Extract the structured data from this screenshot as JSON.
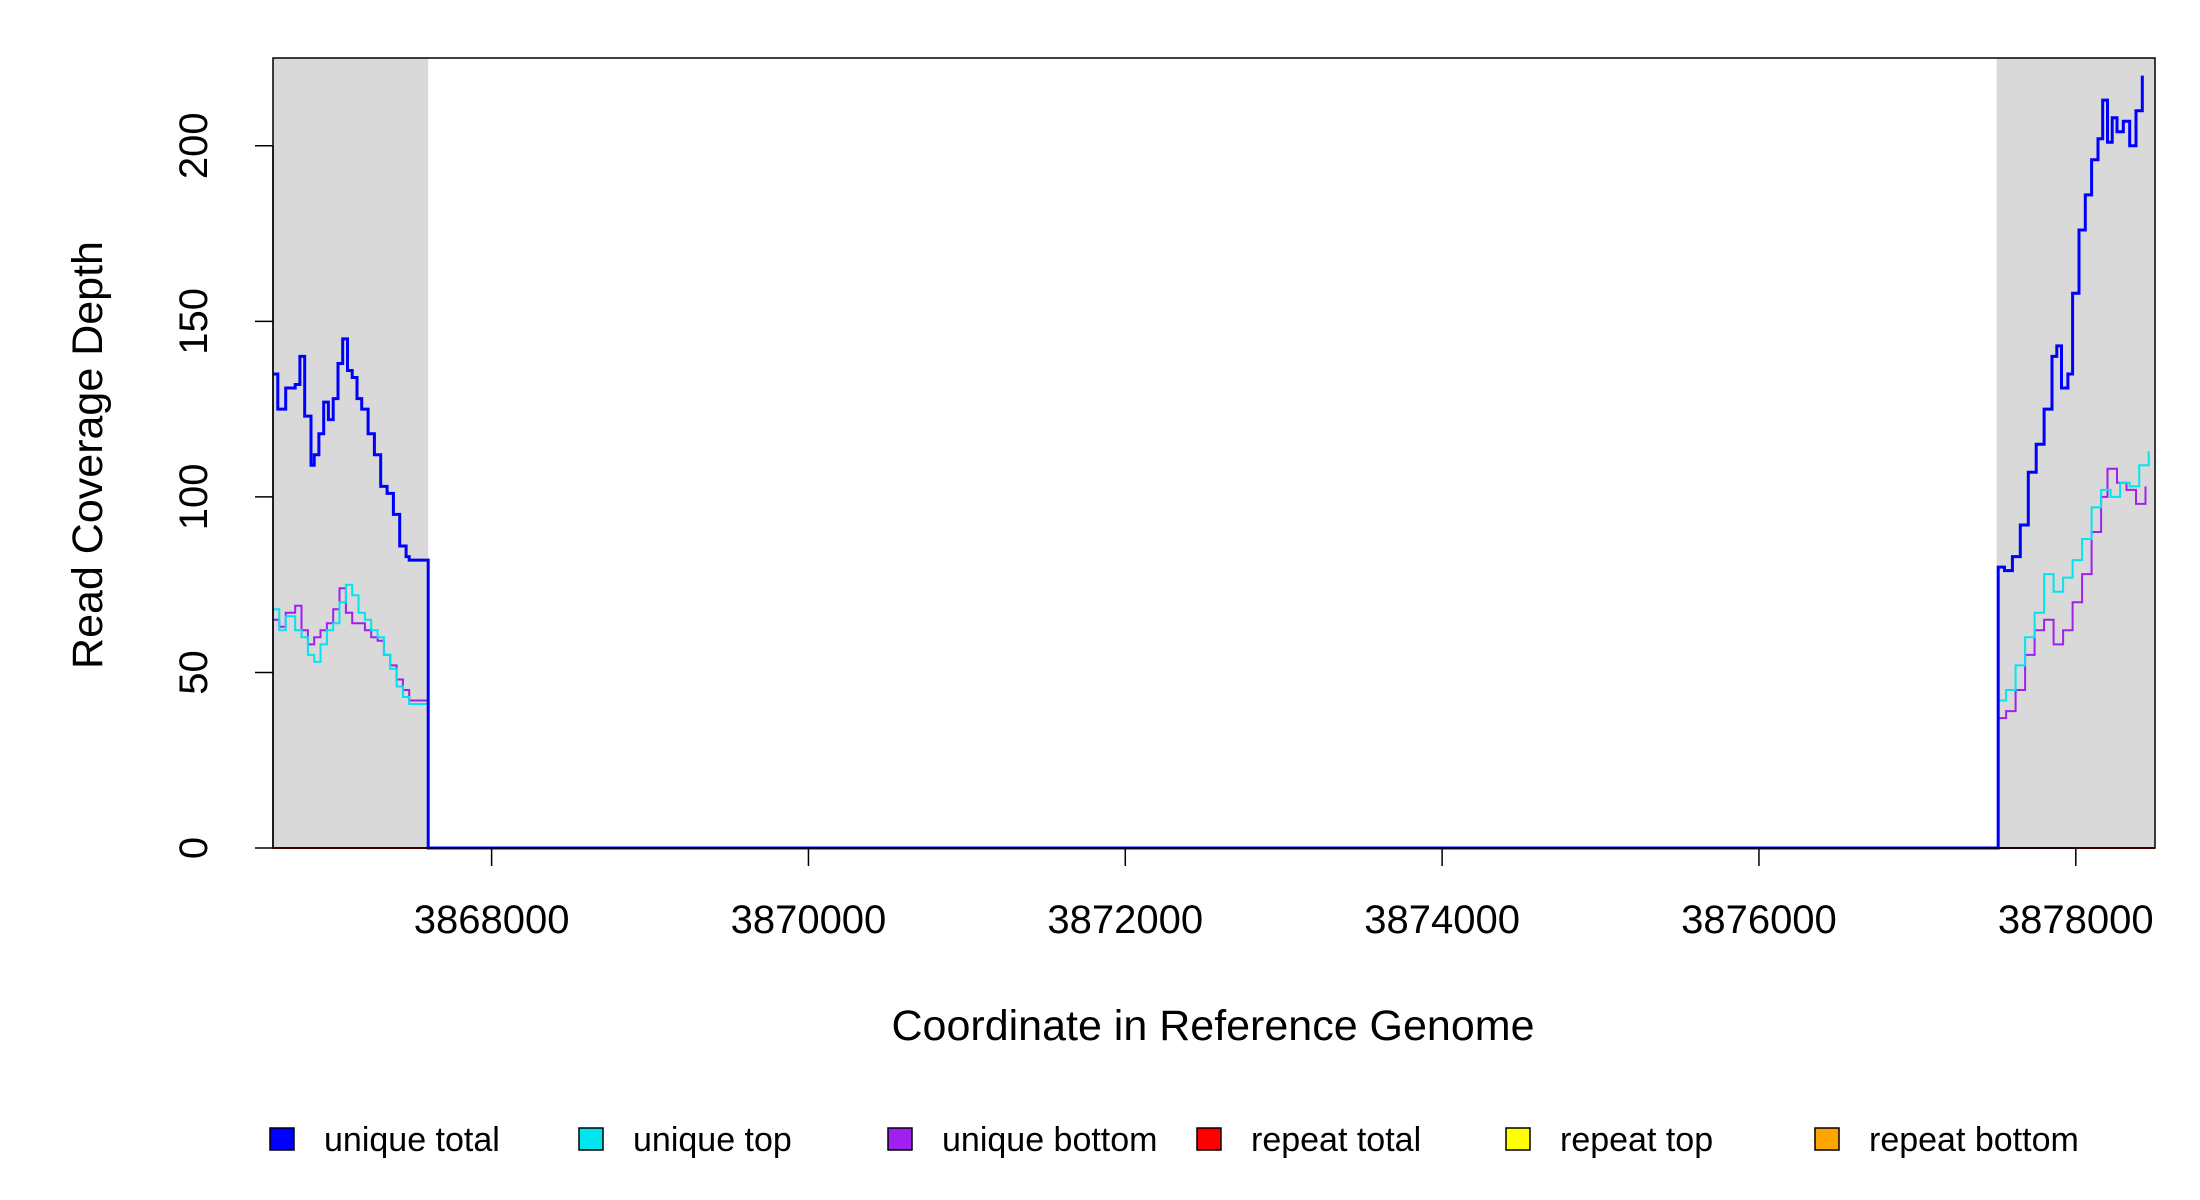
{
  "chart_data": {
    "type": "line",
    "title": "",
    "xlabel": "Coordinate in Reference Genome",
    "ylabel": "Read Coverage Depth",
    "xlim": [
      3866620,
      3878500
    ],
    "ylim": [
      0,
      225
    ],
    "x_ticks": [
      3868000,
      3870000,
      3872000,
      3874000,
      3876000,
      3878000
    ],
    "x_tick_labels": [
      "3868000",
      "3870000",
      "3872000",
      "3874000",
      "3876000",
      "3878000"
    ],
    "y_ticks": [
      0,
      50,
      100,
      150,
      200
    ],
    "y_tick_labels": [
      "0",
      "50",
      "100",
      "150",
      "200"
    ],
    "shaded_regions": [
      {
        "x_start": 3866620,
        "x_end": 3867600,
        "color": "#d9d9d9"
      },
      {
        "x_start": 3877500,
        "x_end": 3878500,
        "color": "#d9d9d9"
      }
    ],
    "grid": false,
    "legend_position": "bottom",
    "legend": [
      {
        "label": "unique total",
        "color": "#0000ff"
      },
      {
        "label": "unique top",
        "color": "#00e5ee"
      },
      {
        "label": "unique bottom",
        "color": "#a020f0"
      },
      {
        "label": "repeat total",
        "color": "#ff0000"
      },
      {
        "label": "repeat top",
        "color": "#ffff00"
      },
      {
        "label": "repeat bottom",
        "color": "#ffa500"
      }
    ],
    "series": [
      {
        "name": "unique total",
        "color": "#0000ff",
        "step": true,
        "points": [
          [
            3866620,
            135
          ],
          [
            3866650,
            125
          ],
          [
            3866700,
            131
          ],
          [
            3866760,
            132
          ],
          [
            3866790,
            140
          ],
          [
            3866820,
            123
          ],
          [
            3866860,
            109
          ],
          [
            3866880,
            112
          ],
          [
            3866910,
            118
          ],
          [
            3866940,
            127
          ],
          [
            3866970,
            122
          ],
          [
            3867000,
            128
          ],
          [
            3867030,
            138
          ],
          [
            3867060,
            145
          ],
          [
            3867090,
            136
          ],
          [
            3867120,
            134
          ],
          [
            3867150,
            128
          ],
          [
            3867180,
            125
          ],
          [
            3867220,
            118
          ],
          [
            3867260,
            112
          ],
          [
            3867300,
            103
          ],
          [
            3867340,
            101
          ],
          [
            3867380,
            95
          ],
          [
            3867420,
            86
          ],
          [
            3867460,
            83
          ],
          [
            3867480,
            82
          ],
          [
            3867600,
            0
          ],
          [
            3877500,
            0
          ],
          [
            3877510,
            80
          ],
          [
            3877550,
            79
          ],
          [
            3877600,
            83
          ],
          [
            3877650,
            92
          ],
          [
            3877700,
            107
          ],
          [
            3877750,
            115
          ],
          [
            3877800,
            125
          ],
          [
            3877850,
            140
          ],
          [
            3877880,
            143
          ],
          [
            3877910,
            131
          ],
          [
            3877950,
            135
          ],
          [
            3877980,
            158
          ],
          [
            3878020,
            176
          ],
          [
            3878060,
            186
          ],
          [
            3878100,
            196
          ],
          [
            3878140,
            202
          ],
          [
            3878170,
            213
          ],
          [
            3878200,
            201
          ],
          [
            3878230,
            208
          ],
          [
            3878260,
            204
          ],
          [
            3878300,
            207
          ],
          [
            3878340,
            200
          ],
          [
            3878380,
            210
          ],
          [
            3878420,
            220
          ]
        ]
      },
      {
        "name": "unique top",
        "color": "#00e5ee",
        "step": true,
        "points": [
          [
            3866620,
            68
          ],
          [
            3866660,
            62
          ],
          [
            3866700,
            66
          ],
          [
            3866760,
            62
          ],
          [
            3866800,
            60
          ],
          [
            3866840,
            55
          ],
          [
            3866880,
            53
          ],
          [
            3866920,
            58
          ],
          [
            3866960,
            62
          ],
          [
            3867000,
            64
          ],
          [
            3867040,
            70
          ],
          [
            3867080,
            75
          ],
          [
            3867120,
            72
          ],
          [
            3867160,
            67
          ],
          [
            3867200,
            65
          ],
          [
            3867240,
            62
          ],
          [
            3867280,
            60
          ],
          [
            3867320,
            55
          ],
          [
            3867360,
            51
          ],
          [
            3867400,
            46
          ],
          [
            3867440,
            43
          ],
          [
            3867480,
            41
          ],
          [
            3867600,
            0
          ],
          [
            3877500,
            0
          ],
          [
            3877510,
            42
          ],
          [
            3877560,
            45
          ],
          [
            3877620,
            52
          ],
          [
            3877680,
            60
          ],
          [
            3877740,
            67
          ],
          [
            3877800,
            78
          ],
          [
            3877860,
            73
          ],
          [
            3877920,
            77
          ],
          [
            3877980,
            82
          ],
          [
            3878040,
            88
          ],
          [
            3878100,
            97
          ],
          [
            3878160,
            102
          ],
          [
            3878220,
            100
          ],
          [
            3878280,
            104
          ],
          [
            3878340,
            103
          ],
          [
            3878400,
            109
          ],
          [
            3878460,
            113
          ]
        ]
      },
      {
        "name": "unique bottom",
        "color": "#a020f0",
        "step": true,
        "points": [
          [
            3866620,
            65
          ],
          [
            3866660,
            63
          ],
          [
            3866700,
            67
          ],
          [
            3866760,
            69
          ],
          [
            3866800,
            62
          ],
          [
            3866840,
            58
          ],
          [
            3866880,
            60
          ],
          [
            3866920,
            62
          ],
          [
            3866960,
            64
          ],
          [
            3867000,
            68
          ],
          [
            3867040,
            74
          ],
          [
            3867080,
            67
          ],
          [
            3867120,
            64
          ],
          [
            3867160,
            64
          ],
          [
            3867200,
            62
          ],
          [
            3867240,
            60
          ],
          [
            3867280,
            59
          ],
          [
            3867320,
            55
          ],
          [
            3867360,
            52
          ],
          [
            3867400,
            48
          ],
          [
            3867440,
            45
          ],
          [
            3867480,
            42
          ],
          [
            3867600,
            0
          ],
          [
            3877500,
            0
          ],
          [
            3877510,
            37
          ],
          [
            3877560,
            39
          ],
          [
            3877620,
            45
          ],
          [
            3877680,
            55
          ],
          [
            3877740,
            62
          ],
          [
            3877800,
            65
          ],
          [
            3877860,
            58
          ],
          [
            3877920,
            62
          ],
          [
            3877980,
            70
          ],
          [
            3878040,
            78
          ],
          [
            3878100,
            90
          ],
          [
            3878160,
            100
          ],
          [
            3878200,
            108
          ],
          [
            3878260,
            104
          ],
          [
            3878320,
            102
          ],
          [
            3878380,
            98
          ],
          [
            3878440,
            103
          ]
        ]
      },
      {
        "name": "repeat total",
        "color": "#ff0000",
        "step": true,
        "points": [
          [
            3866620,
            0
          ],
          [
            3878500,
            0
          ]
        ]
      },
      {
        "name": "repeat top",
        "color": "#ffff00",
        "step": true,
        "points": [
          [
            3866620,
            0
          ],
          [
            3878500,
            0
          ]
        ]
      },
      {
        "name": "repeat bottom",
        "color": "#ffa500",
        "step": true,
        "points": [
          [
            3866620,
            0
          ],
          [
            3878500,
            0
          ]
        ]
      }
    ]
  }
}
